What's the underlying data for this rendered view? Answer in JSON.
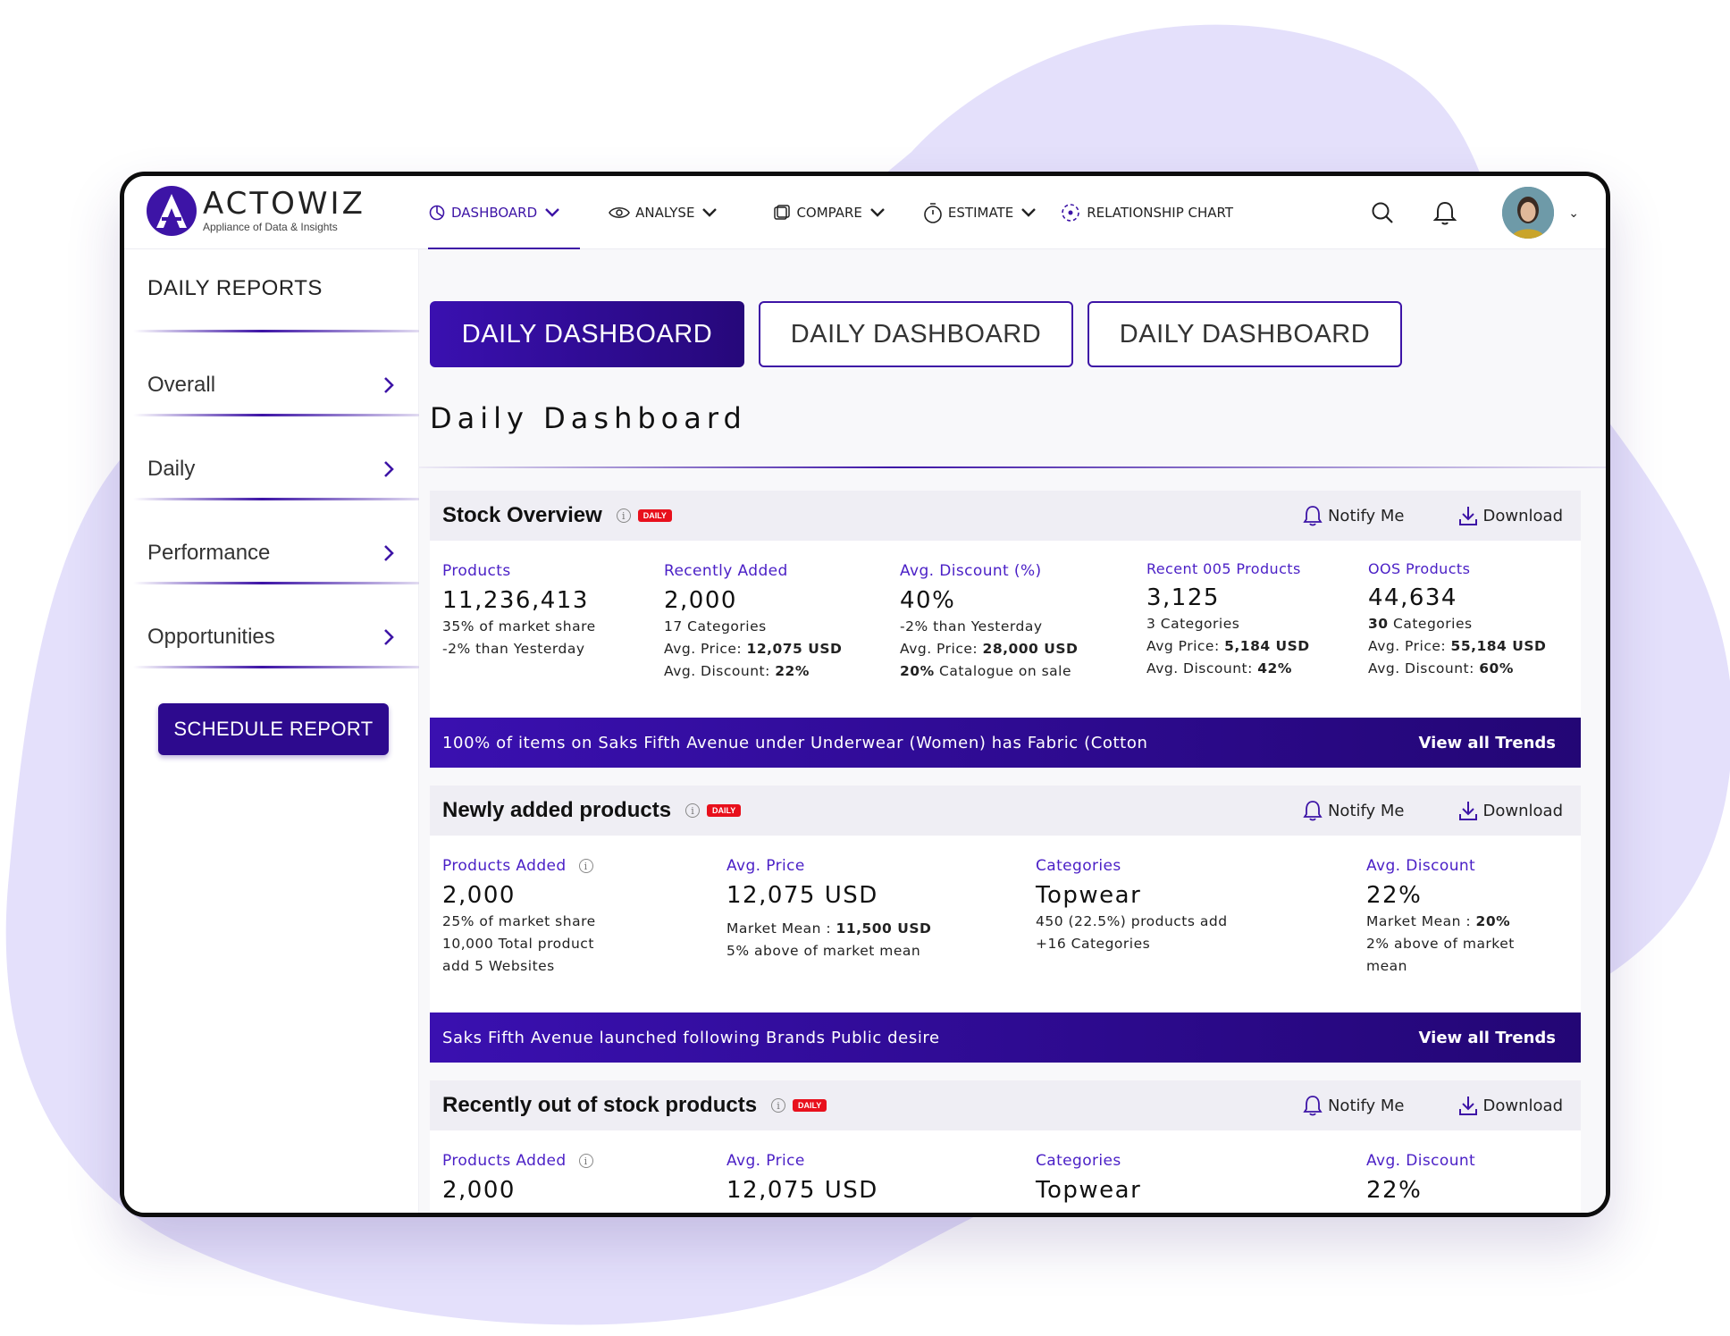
{
  "brand": {
    "name": "ACTOWIZ",
    "tagline": "Appliance of Data & Insights",
    "accent": "#3d14a6"
  },
  "nav": {
    "items": [
      {
        "label": "DASHBOARD",
        "icon": "dashboard-icon",
        "active": true
      },
      {
        "label": "ANALYSE",
        "icon": "eye-icon"
      },
      {
        "label": "COMPARE",
        "icon": "compare-icon"
      },
      {
        "label": "ESTIMATE",
        "icon": "stopwatch-icon"
      },
      {
        "label": "RELATIONSHIP CHART",
        "icon": "relationship-icon"
      }
    ]
  },
  "sidebar": {
    "title": "DAILY REPORTS",
    "items": [
      {
        "label": "Overall"
      },
      {
        "label": "Daily"
      },
      {
        "label": "Performance"
      },
      {
        "label": "Opportunities"
      }
    ],
    "schedule_label": "SCHEDULE REPORT"
  },
  "tabs": [
    "DAILY DASHBOARD",
    "DAILY DASHBOARD",
    "DAILY DASHBOARD"
  ],
  "page_title": "Daily Dashboard",
  "common": {
    "badge": "DAILY",
    "notify": "Notify Me",
    "download": "Download",
    "view_trends": "View all Trends"
  },
  "stock": {
    "title": "Stock Overview",
    "metrics": [
      {
        "label": "Products",
        "value": "11,236,413",
        "l1": "35% of market share",
        "l2": "-2% than Yesterday"
      },
      {
        "label": "Recently Added",
        "value": "2,000",
        "l1": "17 Categories",
        "l2a": "Avg. Price: ",
        "l2b": "12,075 USD",
        "l3a": "Avg. Discount: ",
        "l3b": "22%"
      },
      {
        "label": "Avg. Discount (%)",
        "value": "40%",
        "l1": "-2% than Yesterday",
        "l2a": "Avg. Price: ",
        "l2b": "28,000 USD",
        "l3b": "20%",
        "l3a": " Catalogue on sale"
      },
      {
        "label": "Recent 005 Products",
        "value": "3,125",
        "l1": "3 Categories",
        "l2a": "Avg Price: ",
        "l2b": "5,184 USD",
        "l3a": "Avg. Discount: ",
        "l3b": "42%"
      },
      {
        "label": "OOS Products",
        "value": "44,634",
        "l1b": "30",
        "l1a": " Categories",
        "l2a": "Avg. Price: ",
        "l2b": "55,184 USD",
        "l3a": "Avg. Discount: ",
        "l3b": "60%"
      }
    ],
    "trend": "100% of items on Saks Fifth Avenue under Underwear (Women) has Fabric (Cotton"
  },
  "newly": {
    "title": "Newly added products",
    "metrics": [
      {
        "label": "Products Added",
        "value": "2,000",
        "l1": "25% of market share",
        "l2": "10,000 Total product",
        "l3": "add 5 Websites"
      },
      {
        "label": "Avg. Price",
        "value": "12,075 USD",
        "l1a": "Market Mean : ",
        "l1b": "11,500 USD",
        "l2": "5% above of market mean"
      },
      {
        "label": "Categories",
        "value": "Topwear",
        "l1": "450 (22.5%) products add",
        "l2": "+16 Categories"
      },
      {
        "label": "Avg. Discount",
        "value": "22%",
        "l1a": "Market Mean : ",
        "l1b": "20%",
        "l2": "2% above of market",
        "l3": "mean"
      }
    ],
    "trend": "Saks Fifth Avenue launched following Brands Public desire"
  },
  "oos": {
    "title": "Recently out of stock products",
    "metrics": [
      {
        "label": "Products Added",
        "value": "2,000"
      },
      {
        "label": "Avg. Price",
        "value": "12,075 USD"
      },
      {
        "label": "Categories",
        "value": "Topwear"
      },
      {
        "label": "Avg. Discount",
        "value": "22%"
      }
    ]
  }
}
